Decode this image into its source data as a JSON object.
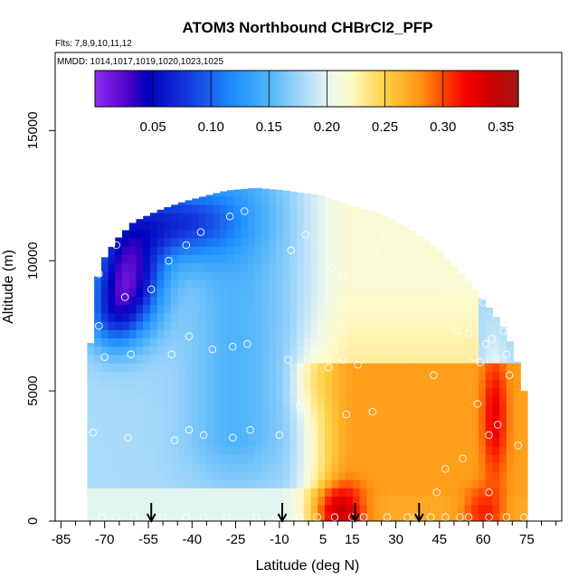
{
  "chart_data": {
    "type": "heatmap",
    "title": "ATOM3 Northbound CHBrCl2_PFP",
    "subtitle_flights": "Flts: 7,8,9,10,11,12",
    "subtitle_dates": "MMDD: 1014,1017,1019,1020,1023,1025",
    "xlabel": "Latitude (deg N)",
    "ylabel": "Altitude (m)",
    "xlim": [
      -87,
      87
    ],
    "ylim": [
      0,
      18000
    ],
    "x_ticks": [
      -85,
      -70,
      -55,
      -40,
      -25,
      -10,
      5,
      15,
      30,
      45,
      60,
      75
    ],
    "x_tick_labels": [
      "-85",
      "-70",
      "-55",
      "-40",
      "-25",
      "-10",
      "5",
      "15",
      "30",
      "45",
      "60",
      "75"
    ],
    "x_minor_ticks": [
      -80,
      -75,
      -65,
      -60,
      -50,
      -45,
      -35,
      -30,
      -20,
      -15,
      -5,
      0,
      10,
      20,
      25,
      35,
      40,
      50,
      55,
      65,
      70,
      80,
      85
    ],
    "y_ticks": [
      0,
      5000,
      10000,
      15000
    ],
    "y_tick_labels": [
      "0",
      "5000",
      "10000",
      "15000"
    ],
    "colorbar": {
      "range": [
        0.0,
        0.365
      ],
      "ticks": [
        0.05,
        0.1,
        0.15,
        0.2,
        0.25,
        0.3,
        0.35
      ],
      "tick_labels": [
        "0.05",
        "0.10",
        "0.15",
        "0.20",
        "0.25",
        "0.30",
        "0.35"
      ],
      "divisions": [
        0.05,
        0.1,
        0.15,
        0.2,
        0.25,
        0.3
      ]
    },
    "arrows_latitude": [
      -54,
      -9,
      16,
      38
    ],
    "samples": [
      {
        "lat": -74,
        "alt": 3400
      },
      {
        "lat": -70,
        "alt": 6300
      },
      {
        "lat": -72,
        "alt": 7500
      },
      {
        "lat": -72,
        "alt": 9500
      },
      {
        "lat": -66,
        "alt": 10600
      },
      {
        "lat": -63,
        "alt": 8600
      },
      {
        "lat": -61,
        "alt": 6400
      },
      {
        "lat": -62,
        "alt": 3200
      },
      {
        "lat": -54,
        "alt": 8900
      },
      {
        "lat": -48,
        "alt": 10000
      },
      {
        "lat": -47,
        "alt": 6400
      },
      {
        "lat": -46,
        "alt": 3100
      },
      {
        "lat": -42,
        "alt": 10600
      },
      {
        "lat": -41,
        "alt": 7100
      },
      {
        "lat": -41,
        "alt": 3500
      },
      {
        "lat": -37,
        "alt": 11100
      },
      {
        "lat": -36,
        "alt": 3300
      },
      {
        "lat": -33,
        "alt": 6600
      },
      {
        "lat": -27,
        "alt": 11700
      },
      {
        "lat": -26,
        "alt": 6700
      },
      {
        "lat": -26,
        "alt": 3200
      },
      {
        "lat": -22,
        "alt": 11900
      },
      {
        "lat": -21,
        "alt": 6800
      },
      {
        "lat": -20,
        "alt": 3500
      },
      {
        "lat": -10,
        "alt": 3300
      },
      {
        "lat": -7,
        "alt": 6200
      },
      {
        "lat": -6,
        "alt": 10400
      },
      {
        "lat": -3,
        "alt": 4400
      },
      {
        "lat": -1,
        "alt": 11000
      },
      {
        "lat": 2,
        "alt": 6500
      },
      {
        "lat": 7,
        "alt": 5900
      },
      {
        "lat": 8,
        "alt": 9700
      },
      {
        "lat": 12,
        "alt": 9500
      },
      {
        "lat": 12,
        "alt": 6200
      },
      {
        "lat": 13,
        "alt": 4100
      },
      {
        "lat": 17,
        "alt": 6000
      },
      {
        "lat": 18,
        "alt": 10200
      },
      {
        "lat": 20,
        "alt": 10500
      },
      {
        "lat": 22,
        "alt": 4200
      },
      {
        "lat": 23,
        "alt": 10300
      },
      {
        "lat": 26,
        "alt": 10900
      },
      {
        "lat": 33,
        "alt": 11600
      },
      {
        "lat": 43,
        "alt": 5600
      },
      {
        "lat": 47,
        "alt": 2000
      },
      {
        "lat": 51,
        "alt": 7300
      },
      {
        "lat": 53,
        "alt": 2400
      },
      {
        "lat": 55,
        "alt": 7200
      },
      {
        "lat": 57,
        "alt": 6300
      },
      {
        "lat": 58,
        "alt": 4500
      },
      {
        "lat": 59,
        "alt": 6100
      },
      {
        "lat": 60,
        "alt": 8400
      },
      {
        "lat": 61,
        "alt": 6800
      },
      {
        "lat": 62,
        "alt": 3300
      },
      {
        "lat": 63,
        "alt": 7000
      },
      {
        "lat": 65,
        "alt": 3700
      },
      {
        "lat": 67,
        "alt": 7300
      },
      {
        "lat": 68,
        "alt": 6400
      },
      {
        "lat": 69,
        "alt": 5600
      },
      {
        "lat": 72,
        "alt": 2900
      },
      {
        "lat": 72,
        "alt": 6800
      },
      {
        "lat": 44,
        "alt": 1100
      },
      {
        "lat": 62,
        "alt": 1100
      },
      {
        "lat": -71,
        "alt": 150
      },
      {
        "lat": -66,
        "alt": 150
      },
      {
        "lat": -60,
        "alt": 150
      },
      {
        "lat": -50,
        "alt": 150
      },
      {
        "lat": -42,
        "alt": 150
      },
      {
        "lat": -36,
        "alt": 150
      },
      {
        "lat": -28,
        "alt": 150
      },
      {
        "lat": -18,
        "alt": 150
      },
      {
        "lat": -11,
        "alt": 150
      },
      {
        "lat": -3,
        "alt": 150
      },
      {
        "lat": 3,
        "alt": 150
      },
      {
        "lat": 9,
        "alt": 150
      },
      {
        "lat": 15,
        "alt": 150
      },
      {
        "lat": 19,
        "alt": 150
      },
      {
        "lat": 27,
        "alt": 150
      },
      {
        "lat": 34,
        "alt": 150
      },
      {
        "lat": 37,
        "alt": 150
      },
      {
        "lat": 42,
        "alt": 150
      },
      {
        "lat": 47,
        "alt": 150
      },
      {
        "lat": 52,
        "alt": 150
      },
      {
        "lat": 55,
        "alt": 150
      },
      {
        "lat": 62,
        "alt": 150
      },
      {
        "lat": 68,
        "alt": 150
      },
      {
        "lat": 74,
        "alt": 150
      },
      {
        "lat": 78,
        "alt": 150
      }
    ]
  }
}
